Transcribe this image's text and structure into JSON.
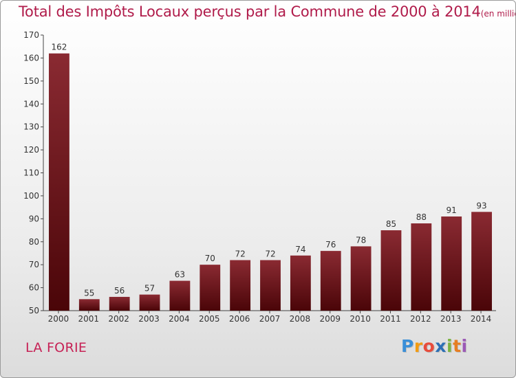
{
  "title": "Total des Impôts Locaux perçus par la Commune de 2000 à 2014",
  "subtitle": "(en milliers d'€)",
  "commune": "LA FORIE",
  "logo": {
    "letters": [
      "P",
      "r",
      "o",
      "x",
      "i",
      "t",
      "i"
    ],
    "colors": [
      "#3a8fd8",
      "#f39c12",
      "#e74c3c",
      "#2c6fb5",
      "#7cb342",
      "#e67e22",
      "#9b59b6"
    ]
  },
  "colors": {
    "bar_top": "#8a2a32",
    "bar_bottom": "#4a0508",
    "title": "#b01b4a"
  },
  "chart_data": {
    "type": "bar",
    "categories": [
      "2000",
      "2001",
      "2002",
      "2003",
      "2004",
      "2005",
      "2006",
      "2007",
      "2008",
      "2009",
      "2010",
      "2011",
      "2012",
      "2013",
      "2014"
    ],
    "values": [
      162,
      55,
      56,
      57,
      63,
      70,
      72,
      72,
      74,
      76,
      78,
      85,
      88,
      91,
      93
    ],
    "ylim": [
      50,
      170
    ],
    "yticks": [
      50,
      60,
      70,
      80,
      90,
      100,
      110,
      120,
      130,
      140,
      150,
      160,
      170
    ],
    "grid": false,
    "legend": "none"
  }
}
